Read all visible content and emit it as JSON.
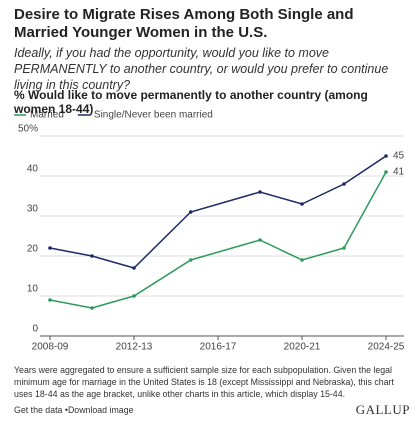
{
  "chart_data": {
    "type": "line",
    "title": "Desire to Migrate Rises Among Both Single and Married Younger Women in the U.S.",
    "subtitle": "Ideally, if you had the opportunity, would you like to move PERMANENTLY to another country, or would you prefer to continue living in this country?",
    "chart_title": "% Would like to move permanently to another country (among women 18-44)",
    "x": [
      2008,
      2010,
      2012,
      2014.7,
      2018,
      2020,
      2022,
      2024
    ],
    "xlim": [
      2008,
      2024
    ],
    "xticks": [
      {
        "value": 2008,
        "label": "2008-09"
      },
      {
        "value": 2012,
        "label": "2012-13"
      },
      {
        "value": 2016,
        "label": "2016-17"
      },
      {
        "value": 2020,
        "label": "2020-21"
      },
      {
        "value": 2024,
        "label": "2024-25"
      }
    ],
    "ylim": [
      0,
      50
    ],
    "yticks": [
      0,
      10,
      20,
      30,
      40,
      {
        "value": 50,
        "label": "50%"
      }
    ],
    "grid": true,
    "legend": "top",
    "series": [
      {
        "name": "Married",
        "color": "#2b9a5a",
        "values": [
          9,
          7,
          10,
          19,
          24,
          19,
          22,
          41
        ]
      },
      {
        "name": "Single/Never been married",
        "color": "#1c2a66",
        "values": [
          22,
          20,
          17,
          31,
          36,
          33,
          38,
          45
        ]
      }
    ],
    "footnote": "Years were aggregated to ensure a sufficient sample size for each subpopulation. Given the legal minimum age for marriage in the United States is 18 (except Mississippi and Nebraska), this chart uses 18-44 as the age bracket, unlike other charts in this article, which display 15-44.",
    "links": [
      "Get the data",
      "Download image"
    ],
    "source": "GALLUP"
  }
}
